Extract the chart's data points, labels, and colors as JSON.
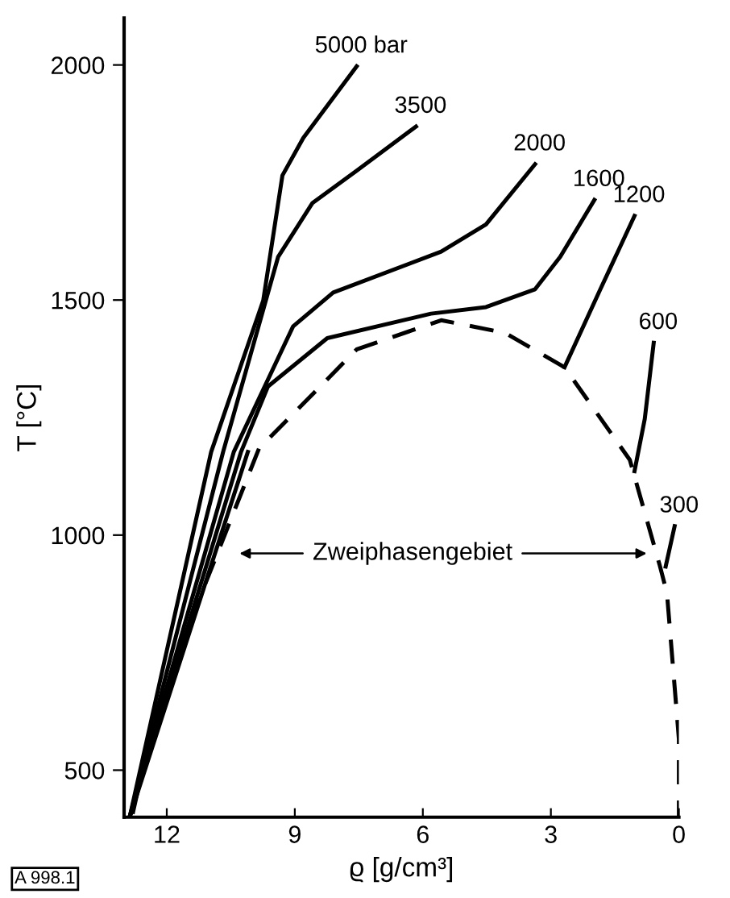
{
  "chart_data": {
    "type": "line",
    "xlabel": "ϱ [g/cm³]",
    "ylabel": "T [°C]",
    "xlim": [
      13,
      0
    ],
    "ylim": [
      400,
      2100
    ],
    "xticks": [
      12,
      9,
      6,
      3,
      0
    ],
    "yticks": [
      500,
      1000,
      1500,
      2000
    ],
    "grid": false,
    "legend": false,
    "marker": "none",
    "series": [
      {
        "name": "5000 bar",
        "color": "#000000",
        "x": [
          12.87,
          10.96,
          9.74,
          9.29,
          8.8,
          7.55
        ],
        "values": [
          400,
          1177,
          1499,
          1765,
          1845,
          1997
        ]
      },
      {
        "name": "3500",
        "color": "#000000",
        "x": [
          12.87,
          10.68,
          9.39,
          8.59,
          7.55,
          6.16
        ],
        "values": [
          400,
          1177,
          1592,
          1706,
          1775,
          1869
        ]
      },
      {
        "name": "2000",
        "color": "#000000",
        "x": [
          12.87,
          10.43,
          9.04,
          8.1,
          5.57,
          4.52,
          3.37
        ],
        "values": [
          400,
          1177,
          1444,
          1516,
          1603,
          1661,
          1789
        ]
      },
      {
        "name": "1600",
        "color": "#000000",
        "x": [
          12.87,
          10.26,
          9.63,
          8.24,
          5.81,
          4.52,
          3.37,
          2.78,
          1.98
        ],
        "values": [
          400,
          1177,
          1316,
          1419,
          1471,
          1485,
          1523,
          1592,
          1713
        ]
      },
      {
        "name": "1200",
        "color": "#000000",
        "x": [
          12.87,
          10.1,
          6.0,
          2.68,
          1.84,
          1.04
        ],
        "values": [
          400,
          1177,
          null,
          1357,
          1523,
          1679
        ]
      },
      {
        "name": "600",
        "color": "#000000",
        "x": [
          1.04,
          0.8,
          0.59
        ],
        "values": [
          1136,
          1247,
          1409
        ]
      },
      {
        "name": "300",
        "color": "#000000",
        "x": [
          0.31,
          0.1
        ],
        "values": [
          933,
          1019
        ]
      },
      {
        "color": "#000000",
        "line_style": "dashed",
        "x": [
          12.8,
          12.52,
          11.23,
          9.84,
          7.55,
          5.57,
          4.07,
          2.68,
          1.15,
          0.45,
          0.28,
          0.0,
          0.0
        ],
        "values": [
          407,
          521,
          866,
          1184,
          1395,
          1457,
          1430,
          1357,
          1160,
          936,
          877,
          566,
          400
        ]
      }
    ],
    "annotations": [
      "Zweiphasengebiet",
      "A 998.1"
    ]
  }
}
